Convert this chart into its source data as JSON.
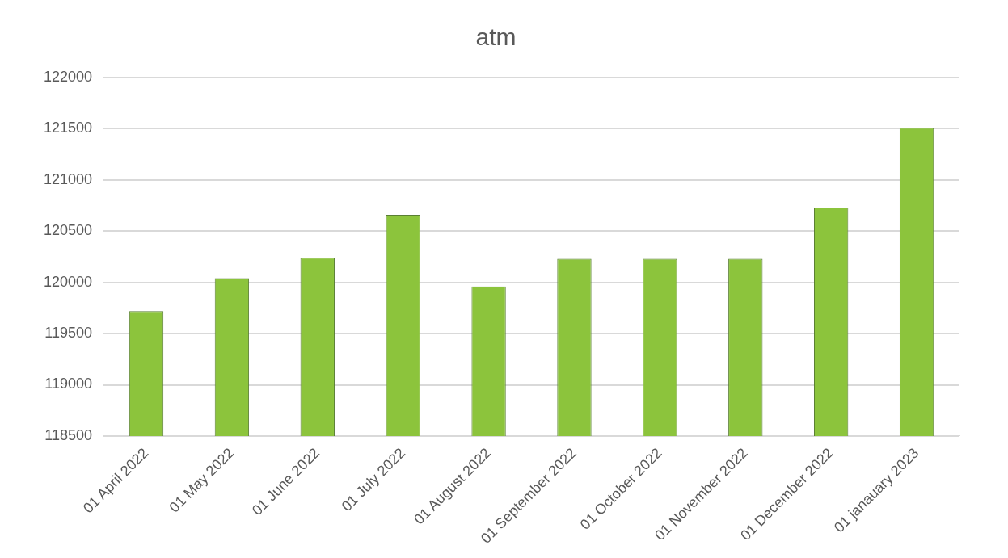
{
  "chart_data": {
    "type": "bar",
    "title": "atm",
    "categories": [
      "01 April 2022",
      "01 May 2022",
      "01 June 2022",
      "01 July 2022",
      "01 August 2022",
      "01 September 2022",
      "01 October 2022",
      "01 November 2022",
      "01 December 2022",
      "01 janauary 2023"
    ],
    "values": [
      119720,
      120040,
      120240,
      120660,
      119960,
      120230,
      120230,
      120230,
      120730,
      121510
    ],
    "color": "#8cc43c",
    "ylim": [
      118500,
      122000
    ],
    "yticks": [
      118500,
      119000,
      119500,
      120000,
      120500,
      121000,
      121500,
      122000
    ],
    "grid": "y",
    "legend": false
  }
}
